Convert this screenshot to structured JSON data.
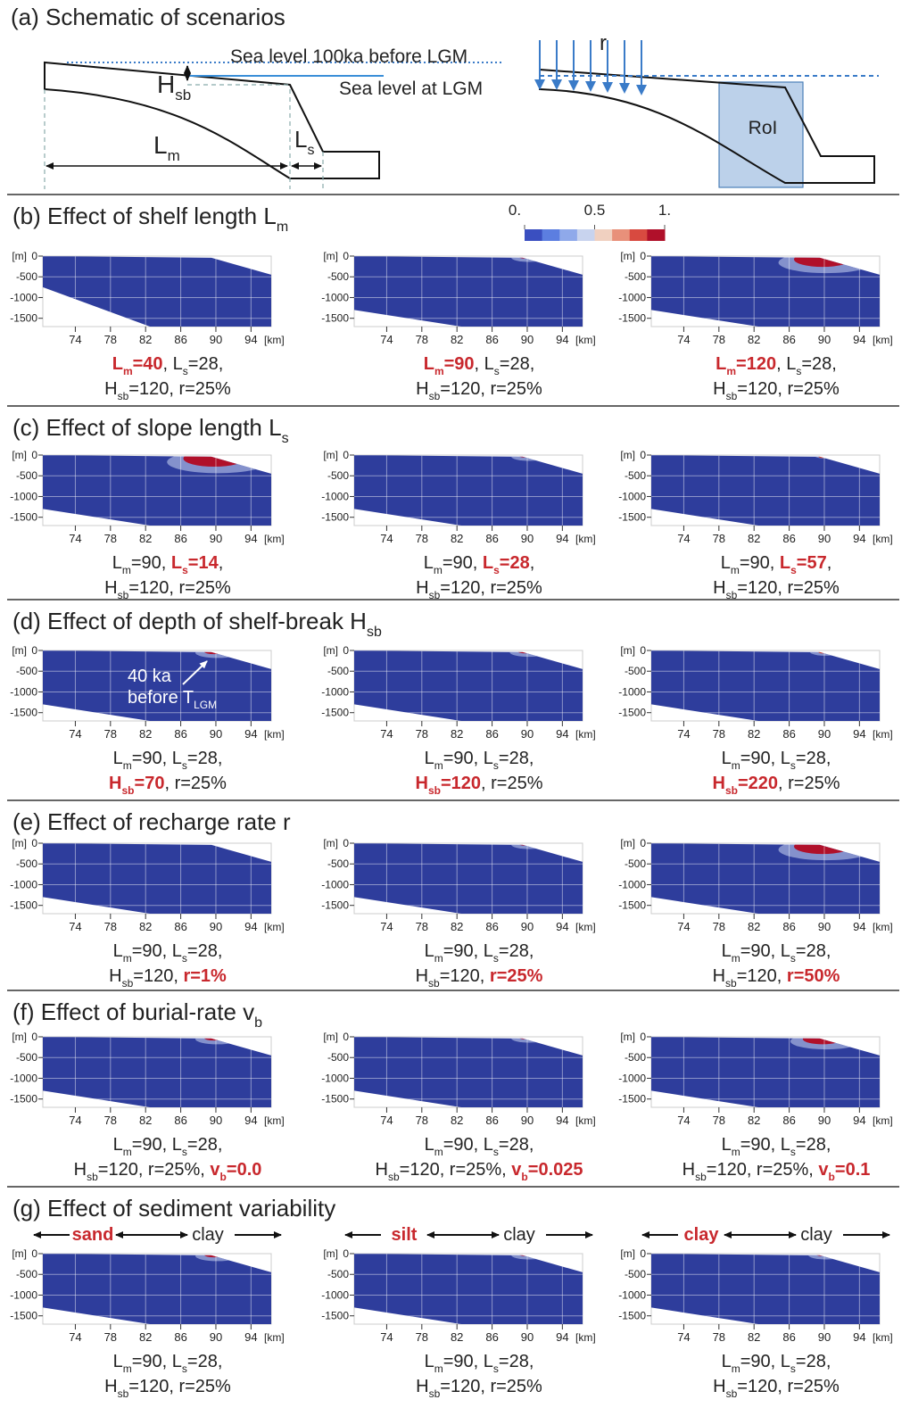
{
  "panel_a": {
    "title": "(a) Schematic of scenarios",
    "sea_level_100ka": "Sea level 100ka before LGM",
    "sea_level_lgm": "Sea level at LGM",
    "h_sb": [
      {
        "t": "H"
      },
      {
        "sub": "sb"
      }
    ],
    "l_m": [
      {
        "t": "L"
      },
      {
        "sub": "m"
      }
    ],
    "l_s": [
      {
        "t": "L"
      },
      {
        "sub": "s"
      }
    ],
    "r": "r",
    "roi": "RoI"
  },
  "colorbar": {
    "lim": [
      0,
      1
    ],
    "ticks": [
      {
        "value": 0,
        "label": "0."
      },
      0.5,
      {
        "value": 1,
        "label": "1."
      }
    ],
    "colors": [
      "#3a4fc0",
      "#5c7ee0",
      "#8fa9ea",
      "#c8d3ee",
      "#f0d0c0",
      "#e8907a",
      "#d84a40",
      "#b0102a"
    ]
  },
  "axis": {
    "y_unit": "[m]",
    "x_unit": "[km]",
    "xlim": [
      70.3,
      96.3
    ],
    "ylim": [
      -1700,
      0
    ],
    "xticks": [
      74,
      78,
      82,
      86,
      90,
      94
    ],
    "yticks": [
      0,
      -500,
      -1000,
      -1500
    ]
  },
  "annotation": {
    "line1": "40 ka",
    "line2": [
      {
        "t": "before T"
      },
      {
        "sub": "LGM"
      }
    ]
  },
  "sections": [
    {
      "title": [
        {
          "t": "(b) Effect of shelf length L"
        },
        {
          "sub": "m"
        }
      ],
      "panels": [
        {
          "caption": [
            [
              {
                "t": "L",
                "hl": true
              },
              {
                "sub": "m",
                "hl": true
              },
              {
                "t": "=40",
                "hl": true
              },
              {
                "t": ", L"
              },
              {
                "sub": "s"
              },
              {
                "t": "=28,"
              }
            ],
            [
              {
                "t": "H"
              },
              {
                "sub": "sb"
              },
              {
                "t": "=120, r=25%"
              }
            ]
          ]
        },
        {
          "caption": [
            [
              {
                "t": "L",
                "hl": true
              },
              {
                "sub": "m",
                "hl": true
              },
              {
                "t": "=90",
                "hl": true
              },
              {
                "t": ", L"
              },
              {
                "sub": "s"
              },
              {
                "t": "=28,"
              }
            ],
            [
              {
                "t": "H"
              },
              {
                "sub": "sb"
              },
              {
                "t": "=120, r=25%"
              }
            ]
          ]
        },
        {
          "caption": [
            [
              {
                "t": "L",
                "hl": true
              },
              {
                "sub": "m",
                "hl": true
              },
              {
                "t": "=120",
                "hl": true
              },
              {
                "t": ", L"
              },
              {
                "sub": "s"
              },
              {
                "t": "=28,"
              }
            ],
            [
              {
                "t": "H"
              },
              {
                "sub": "sb"
              },
              {
                "t": "=120, r=25%"
              }
            ]
          ]
        }
      ]
    },
    {
      "title": [
        {
          "t": "(c) Effect of slope length L"
        },
        {
          "sub": "s"
        }
      ],
      "panels": [
        {
          "caption": [
            [
              {
                "t": "L"
              },
              {
                "sub": "m"
              },
              {
                "t": "=90, "
              },
              {
                "t": "L",
                "hl": true
              },
              {
                "sub": "s",
                "hl": true
              },
              {
                "t": "=14",
                "hl": true
              },
              {
                "t": ","
              }
            ],
            [
              {
                "t": "H"
              },
              {
                "sub": "sb"
              },
              {
                "t": "=120, r=25%"
              }
            ]
          ]
        },
        {
          "caption": [
            [
              {
                "t": "L"
              },
              {
                "sub": "m"
              },
              {
                "t": "=90, "
              },
              {
                "t": "L",
                "hl": true
              },
              {
                "sub": "s",
                "hl": true
              },
              {
                "t": "=28",
                "hl": true
              },
              {
                "t": ","
              }
            ],
            [
              {
                "t": "H"
              },
              {
                "sub": "sb"
              },
              {
                "t": "=120, r=25%"
              }
            ]
          ]
        },
        {
          "caption": [
            [
              {
                "t": "L"
              },
              {
                "sub": "m"
              },
              {
                "t": "=90, "
              },
              {
                "t": "L",
                "hl": true
              },
              {
                "sub": "s",
                "hl": true
              },
              {
                "t": "=57",
                "hl": true
              },
              {
                "t": ","
              }
            ],
            [
              {
                "t": "H"
              },
              {
                "sub": "sb"
              },
              {
                "t": "=120, r=25%"
              }
            ]
          ]
        }
      ]
    },
    {
      "title": [
        {
          "t": "(d) Effect of depth of shelf-break H"
        },
        {
          "sub": "sb"
        }
      ],
      "panels": [
        {
          "caption": [
            [
              {
                "t": "L"
              },
              {
                "sub": "m"
              },
              {
                "t": "=90, L"
              },
              {
                "sub": "s"
              },
              {
                "t": "=28,"
              }
            ],
            [
              {
                "t": "H",
                "hl": true
              },
              {
                "sub": "sb",
                "hl": true
              },
              {
                "t": "=70",
                "hl": true
              },
              {
                "t": ", r=25%"
              }
            ]
          ]
        },
        {
          "caption": [
            [
              {
                "t": "L"
              },
              {
                "sub": "m"
              },
              {
                "t": "=90, L"
              },
              {
                "sub": "s"
              },
              {
                "t": "=28,"
              }
            ],
            [
              {
                "t": "H",
                "hl": true
              },
              {
                "sub": "sb",
                "hl": true
              },
              {
                "t": "=120",
                "hl": true
              },
              {
                "t": ", r=25%"
              }
            ]
          ]
        },
        {
          "caption": [
            [
              {
                "t": "L"
              },
              {
                "sub": "m"
              },
              {
                "t": "=90, L"
              },
              {
                "sub": "s"
              },
              {
                "t": "=28,"
              }
            ],
            [
              {
                "t": "H",
                "hl": true
              },
              {
                "sub": "sb",
                "hl": true
              },
              {
                "t": "=220",
                "hl": true
              },
              {
                "t": ", r=25%"
              }
            ]
          ]
        }
      ]
    },
    {
      "title": [
        {
          "t": "(e) Effect of recharge rate r"
        }
      ],
      "panels": [
        {
          "caption": [
            [
              {
                "t": "L"
              },
              {
                "sub": "m"
              },
              {
                "t": "=90, L"
              },
              {
                "sub": "s"
              },
              {
                "t": "=28,"
              }
            ],
            [
              {
                "t": "H"
              },
              {
                "sub": "sb"
              },
              {
                "t": "=120, "
              },
              {
                "t": "r=1%",
                "hl": true
              }
            ]
          ]
        },
        {
          "caption": [
            [
              {
                "t": "L"
              },
              {
                "sub": "m"
              },
              {
                "t": "=90, L"
              },
              {
                "sub": "s"
              },
              {
                "t": "=28,"
              }
            ],
            [
              {
                "t": "H"
              },
              {
                "sub": "sb"
              },
              {
                "t": "=120, "
              },
              {
                "t": "r=25%",
                "hl": true
              }
            ]
          ]
        },
        {
          "caption": [
            [
              {
                "t": "L"
              },
              {
                "sub": "m"
              },
              {
                "t": "=90, L"
              },
              {
                "sub": "s"
              },
              {
                "t": "=28,"
              }
            ],
            [
              {
                "t": "H"
              },
              {
                "sub": "sb"
              },
              {
                "t": "=120, "
              },
              {
                "t": "r=50%",
                "hl": true
              }
            ]
          ]
        }
      ]
    },
    {
      "title": [
        {
          "t": "(f) Effect of burial-rate v"
        },
        {
          "sub": "b"
        }
      ],
      "panels": [
        {
          "caption": [
            [
              {
                "t": "L"
              },
              {
                "sub": "m"
              },
              {
                "t": "=90, L"
              },
              {
                "sub": "s"
              },
              {
                "t": "=28,"
              }
            ],
            [
              {
                "t": "H"
              },
              {
                "sub": "sb"
              },
              {
                "t": "=120, r=25%,  "
              },
              {
                "t": "v",
                "hl": true
              },
              {
                "sub": "b",
                "hl": true
              },
              {
                "t": "=0.0",
                "hl": true
              }
            ]
          ]
        },
        {
          "caption": [
            [
              {
                "t": "L"
              },
              {
                "sub": "m"
              },
              {
                "t": "=90, L"
              },
              {
                "sub": "s"
              },
              {
                "t": "=28,"
              }
            ],
            [
              {
                "t": "H"
              },
              {
                "sub": "sb"
              },
              {
                "t": "=120, r=25%, "
              },
              {
                "t": "v",
                "hl": true
              },
              {
                "sub": "b",
                "hl": true
              },
              {
                "t": "=0.025",
                "hl": true
              }
            ]
          ]
        },
        {
          "caption": [
            [
              {
                "t": "L"
              },
              {
                "sub": "m"
              },
              {
                "t": "=90, L"
              },
              {
                "sub": "s"
              },
              {
                "t": "=28,"
              }
            ],
            [
              {
                "t": "H"
              },
              {
                "sub": "sb"
              },
              {
                "t": "=120, r=25%,  "
              },
              {
                "t": "v",
                "hl": true
              },
              {
                "sub": "b",
                "hl": true
              },
              {
                "t": "=0.1",
                "hl": true
              }
            ]
          ]
        }
      ]
    },
    {
      "title": [
        {
          "t": "(g) Effect of sediment variability"
        }
      ],
      "panels": [
        {
          "sediment": [
            "sand",
            "clay"
          ],
          "caption": [
            [
              {
                "t": "L"
              },
              {
                "sub": "m"
              },
              {
                "t": "=90, L"
              },
              {
                "sub": "s"
              },
              {
                "t": "=28,"
              }
            ],
            [
              {
                "t": "H"
              },
              {
                "sub": "sb"
              },
              {
                "t": "=120, r=25%"
              }
            ]
          ]
        },
        {
          "sediment": [
            "silt",
            "clay"
          ],
          "caption": [
            [
              {
                "t": "L"
              },
              {
                "sub": "m"
              },
              {
                "t": "=90, L"
              },
              {
                "sub": "s"
              },
              {
                "t": "=28,"
              }
            ],
            [
              {
                "t": "H"
              },
              {
                "sub": "sb"
              },
              {
                "t": "=120, r=25%"
              }
            ]
          ]
        },
        {
          "sediment": [
            "clay",
            "clay"
          ],
          "caption": [
            [
              {
                "t": "L"
              },
              {
                "sub": "m"
              },
              {
                "t": "=90, L"
              },
              {
                "sub": "s"
              },
              {
                "t": "=28,"
              }
            ],
            [
              {
                "t": "H"
              },
              {
                "sub": "sb"
              },
              {
                "t": "=120, r=25%"
              }
            ]
          ]
        }
      ]
    }
  ]
}
